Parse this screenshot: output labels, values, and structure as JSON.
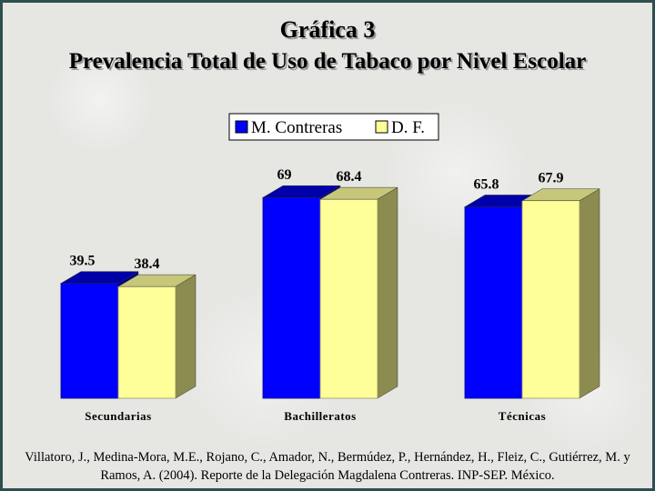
{
  "title": "Gráfica 3",
  "subtitle": "Prevalencia Total de Uso de Tabaco por Nivel Escolar",
  "footnote": "Villatoro, J., Medina-Mora, M.E., Rojano, C., Amador, N., Bermúdez, P., Hernández, H., Fleiz, C., Gutiérrez, M. y Ramos, A. (2004). Reporte de la Delegación Magdalena Contreras. INP-SEP. México.",
  "colors": {
    "series1_front": "#0000ff",
    "series1_top": "#0000a8",
    "series1_side": "#00008a",
    "series2_front": "#ffff99",
    "series2_top": "#c7c77a",
    "series2_side": "#8c8c50"
  },
  "chart_data": {
    "type": "bar",
    "categories": [
      "Secundarias",
      "Bachilleratos",
      "Técnicas"
    ],
    "series": [
      {
        "name": "M. Contreras",
        "values": [
          39.5,
          69,
          65.8
        ],
        "labels": [
          "39.5",
          "69",
          "65.8"
        ]
      },
      {
        "name": "D. F.",
        "values": [
          38.4,
          68.4,
          67.9
        ],
        "labels": [
          "38.4",
          "68.4",
          "67.9"
        ]
      }
    ],
    "ylim": [
      0,
      100
    ],
    "grid": false,
    "legend": "top-center",
    "bar_style": "3d"
  }
}
